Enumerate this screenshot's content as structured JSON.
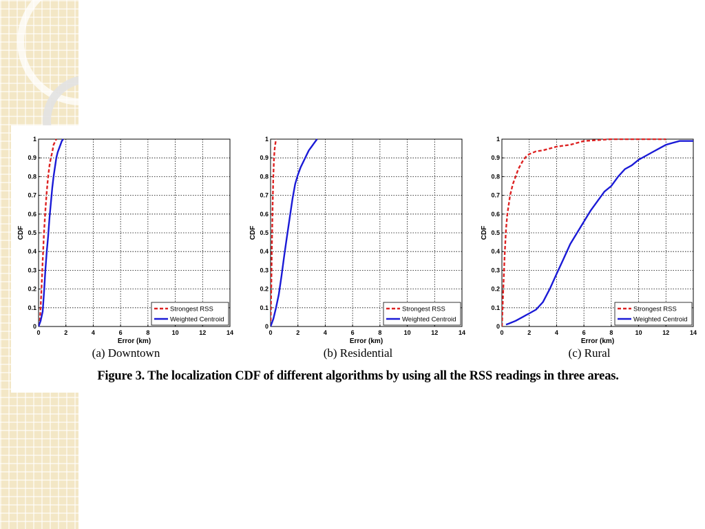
{
  "caption": "Figure 3. The localization CDF of different algorithms by using all the RSS readings in three areas.",
  "colors": {
    "strongest_rss": "#dd2222",
    "weighted_centroid": "#1a1ad6",
    "grid": "#000000",
    "sidebar": "#f3e7c6"
  },
  "chart_data": [
    {
      "type": "line",
      "subcaption": "(a) Downtown",
      "xlabel": "Error (km)",
      "ylabel": "CDF",
      "xlim": [
        0,
        14
      ],
      "ylim": [
        0,
        1
      ],
      "xticks": [
        0,
        2,
        4,
        6,
        8,
        10,
        12,
        14
      ],
      "yticks": [
        0,
        0.1,
        0.2,
        0.3,
        0.4,
        0.5,
        0.6,
        0.7,
        0.8,
        0.9,
        1
      ],
      "grid": true,
      "legend": "bottom-right",
      "series": [
        {
          "name": "Strongest RSS",
          "style": "dashed",
          "color": "#dd2222",
          "x": [
            0,
            0.1,
            0.2,
            0.3,
            0.4,
            0.5,
            0.6,
            0.7,
            0.8,
            0.9,
            1.0,
            1.1,
            1.3
          ],
          "y": [
            0,
            0.03,
            0.18,
            0.35,
            0.5,
            0.62,
            0.72,
            0.8,
            0.86,
            0.9,
            0.93,
            0.97,
            1.0
          ]
        },
        {
          "name": "Weighted Centroid",
          "style": "solid",
          "color": "#1a1ad6",
          "x": [
            0,
            0.15,
            0.3,
            0.4,
            0.5,
            0.6,
            0.7,
            0.8,
            0.9,
            1.0,
            1.1,
            1.2,
            1.3,
            1.4,
            1.5,
            1.6,
            1.7,
            1.8
          ],
          "y": [
            0,
            0.03,
            0.08,
            0.18,
            0.3,
            0.4,
            0.48,
            0.58,
            0.66,
            0.74,
            0.8,
            0.85,
            0.9,
            0.93,
            0.95,
            0.97,
            0.99,
            1.0
          ]
        }
      ]
    },
    {
      "type": "line",
      "subcaption": "(b) Residential",
      "xlabel": "Error (km)",
      "ylabel": "CDF",
      "xlim": [
        0,
        14
      ],
      "ylim": [
        0,
        1
      ],
      "xticks": [
        0,
        2,
        4,
        6,
        8,
        10,
        12,
        14
      ],
      "yticks": [
        0,
        0.1,
        0.2,
        0.3,
        0.4,
        0.5,
        0.6,
        0.7,
        0.8,
        0.9,
        1
      ],
      "grid": true,
      "legend": "bottom-right",
      "series": [
        {
          "name": "Strongest RSS",
          "style": "dashed",
          "color": "#dd2222",
          "x": [
            0,
            0.05,
            0.1,
            0.15,
            0.2,
            0.25,
            0.3,
            0.4
          ],
          "y": [
            0,
            0.2,
            0.45,
            0.65,
            0.8,
            0.9,
            0.95,
            1.0
          ]
        },
        {
          "name": "Weighted Centroid",
          "style": "solid",
          "color": "#1a1ad6",
          "x": [
            0,
            0.2,
            0.4,
            0.6,
            0.8,
            1.0,
            1.2,
            1.4,
            1.6,
            1.8,
            2.0,
            2.2,
            2.4,
            2.6,
            2.8,
            3.0,
            3.2,
            3.4
          ],
          "y": [
            0,
            0.04,
            0.1,
            0.17,
            0.27,
            0.38,
            0.48,
            0.58,
            0.68,
            0.76,
            0.81,
            0.85,
            0.88,
            0.91,
            0.94,
            0.96,
            0.98,
            1.0
          ]
        }
      ]
    },
    {
      "type": "line",
      "subcaption": "(c) Rural",
      "xlabel": "Error (km)",
      "ylabel": "CDF",
      "xlim": [
        0,
        14
      ],
      "ylim": [
        0,
        1
      ],
      "xticks": [
        0,
        2,
        4,
        6,
        8,
        10,
        12,
        14
      ],
      "yticks": [
        0,
        0.1,
        0.2,
        0.3,
        0.4,
        0.5,
        0.6,
        0.7,
        0.8,
        0.9,
        1
      ],
      "grid": true,
      "legend": "bottom-right",
      "series": [
        {
          "name": "Strongest RSS",
          "style": "dashed",
          "color": "#dd2222",
          "x": [
            0,
            0.1,
            0.2,
            0.3,
            0.4,
            0.5,
            0.6,
            0.8,
            1.0,
            1.2,
            1.5,
            1.8,
            2.0,
            2.5,
            3.0,
            4.0,
            5.0,
            6.0,
            7.0,
            8.0,
            10.0,
            12.0
          ],
          "y": [
            0,
            0.2,
            0.38,
            0.52,
            0.6,
            0.65,
            0.7,
            0.76,
            0.8,
            0.84,
            0.88,
            0.91,
            0.92,
            0.935,
            0.94,
            0.96,
            0.97,
            0.99,
            0.995,
            1.0,
            1.0,
            1.0
          ]
        },
        {
          "name": "Weighted Centroid",
          "style": "solid",
          "color": "#1a1ad6",
          "x": [
            0.3,
            0.5,
            1.0,
            1.5,
            2.0,
            2.5,
            3.0,
            3.5,
            4.0,
            4.5,
            5.0,
            5.5,
            6.0,
            6.5,
            7.0,
            7.5,
            8.0,
            8.5,
            9.0,
            9.5,
            10.0,
            10.5,
            11.0,
            11.5,
            12.0,
            12.5,
            13.0,
            14.0
          ],
          "y": [
            0.01,
            0.015,
            0.03,
            0.05,
            0.07,
            0.09,
            0.13,
            0.2,
            0.28,
            0.36,
            0.44,
            0.5,
            0.56,
            0.62,
            0.67,
            0.72,
            0.75,
            0.8,
            0.84,
            0.86,
            0.89,
            0.91,
            0.93,
            0.95,
            0.97,
            0.98,
            0.99,
            0.99
          ]
        }
      ]
    }
  ]
}
